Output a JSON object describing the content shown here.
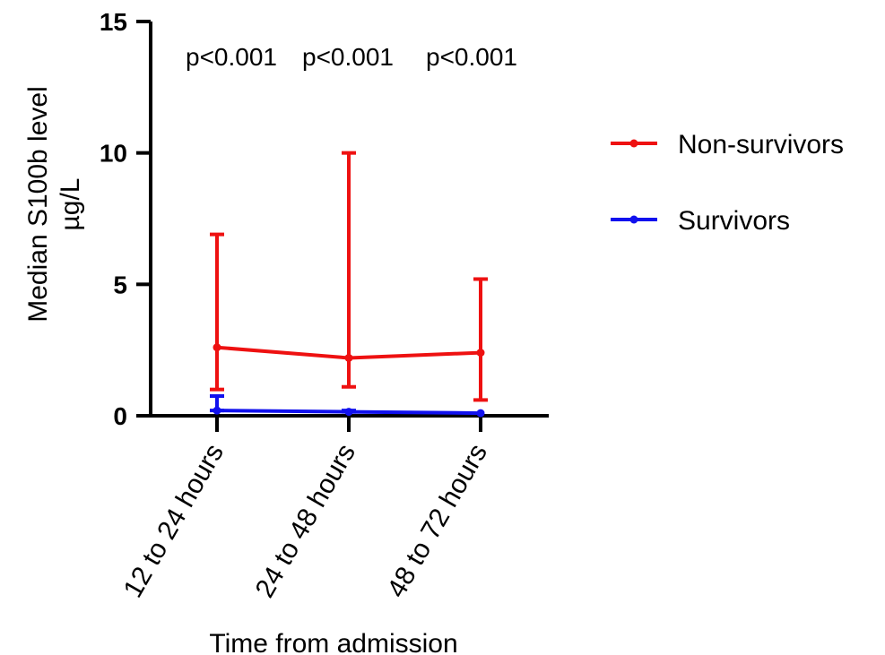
{
  "chart_data": {
    "type": "line",
    "title": "",
    "xlabel": "Time from admission",
    "ylabel_line1": "Median  S100b level",
    "ylabel_line2": "µg/L",
    "categories": [
      "12 to 24 hours",
      "24 to 48 hours",
      "48 to 72 hours"
    ],
    "ylim": [
      0,
      15
    ],
    "yticks": [
      "0",
      "5",
      "10",
      "15"
    ],
    "grid": false,
    "legend_position": "right",
    "annotations": [
      "p<0.001",
      "p<0.001",
      "p<0.001"
    ],
    "series": [
      {
        "name": "Non-survivors",
        "color": "#ee1111",
        "values": [
          2.6,
          2.2,
          2.4
        ],
        "error_low": [
          1.0,
          1.1,
          0.6
        ],
        "error_high": [
          6.9,
          10.0,
          5.2
        ]
      },
      {
        "name": "Survivors",
        "color": "#1111ee",
        "values": [
          0.2,
          0.15,
          0.1
        ],
        "error_low": [
          0.2,
          0.15,
          0.1
        ],
        "error_high": [
          0.75,
          0.2,
          0.1
        ]
      }
    ]
  }
}
